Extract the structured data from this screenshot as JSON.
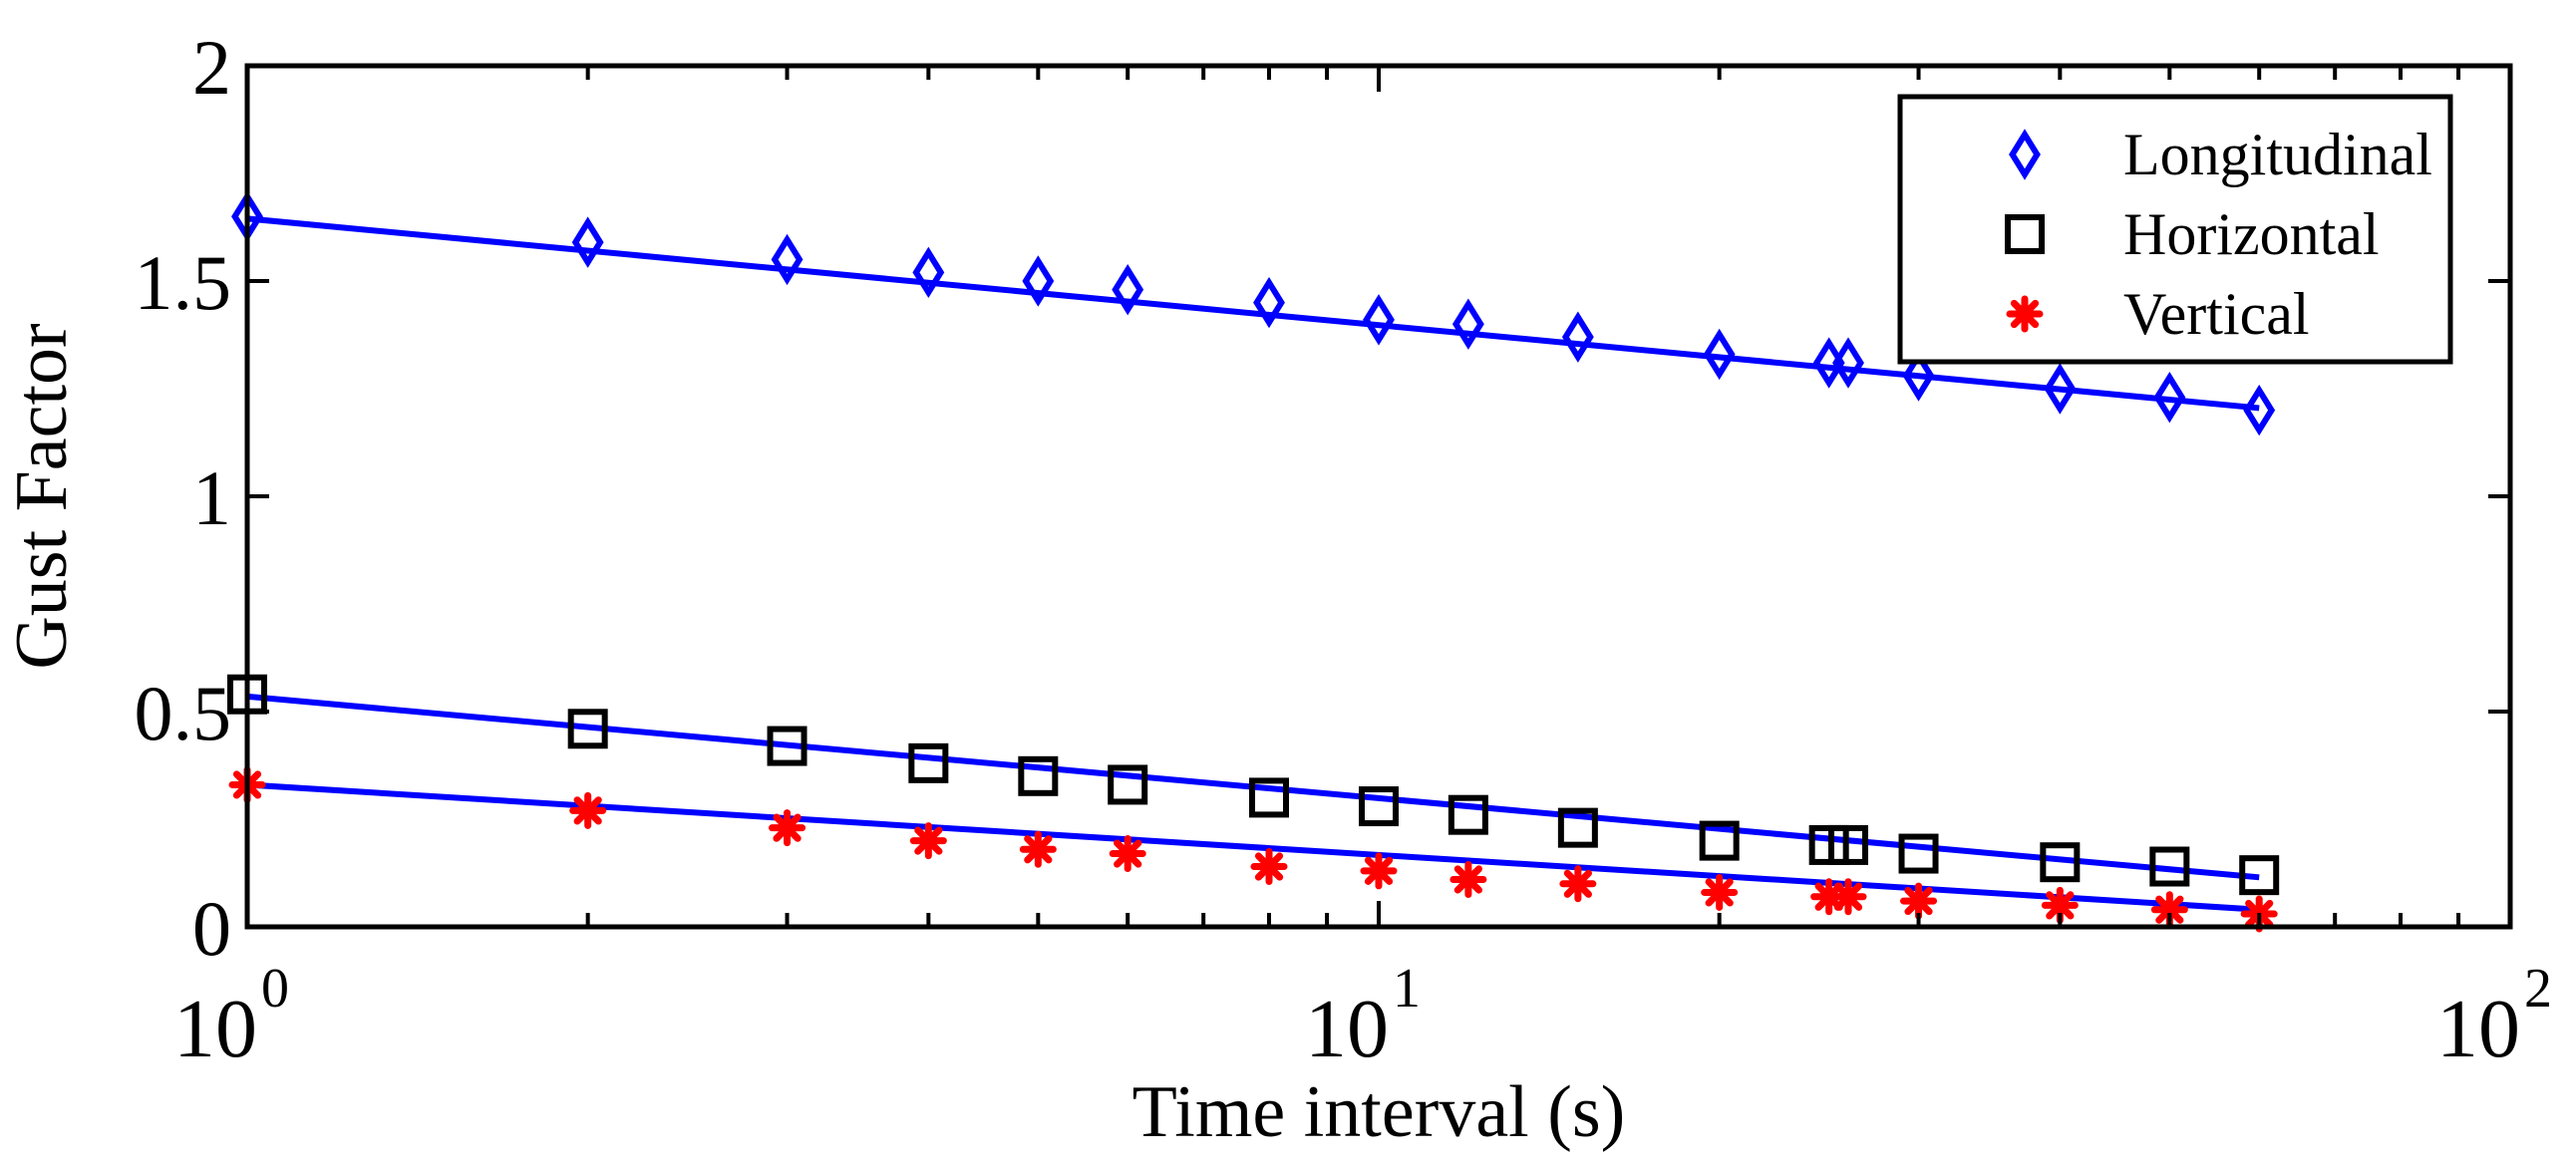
{
  "colors": {
    "axis": "#000000",
    "fit_line": "#0000ff",
    "longitudinal": "#0000ff",
    "horizontal": "#000000",
    "vertical": "#ff0000",
    "background": "#ffffff"
  },
  "chart_data": {
    "type": "scatter",
    "title": "",
    "xlabel": "Time interval (s)",
    "ylabel": "Gust Factor",
    "xscale": "log",
    "xlim": [
      1,
      100
    ],
    "ylim": [
      0,
      2
    ],
    "grid": false,
    "legend_position": "top-right",
    "xticks": [
      {
        "value": 1,
        "base": "10",
        "exp": "0"
      },
      {
        "value": 10,
        "base": "10",
        "exp": "1"
      },
      {
        "value": 100,
        "base": "10",
        "exp": "2"
      }
    ],
    "yticks": [
      {
        "value": 0,
        "label": "0"
      },
      {
        "value": 0.5,
        "label": "0.5"
      },
      {
        "value": 1,
        "label": "1"
      },
      {
        "value": 1.5,
        "label": "1.5"
      },
      {
        "value": 2,
        "label": "2"
      }
    ],
    "x": [
      1,
      2,
      3,
      4,
      5,
      6,
      8,
      10,
      12,
      15,
      20,
      25,
      26,
      30,
      40,
      50,
      60
    ],
    "series": [
      {
        "name": "Longitudinal",
        "marker": "diamond",
        "values": [
          1.65,
          1.59,
          1.55,
          1.52,
          1.5,
          1.48,
          1.45,
          1.41,
          1.4,
          1.37,
          1.33,
          1.31,
          1.31,
          1.28,
          1.25,
          1.23,
          1.2
        ],
        "fit": [
          1.645,
          1.205
        ]
      },
      {
        "name": "Horizontal",
        "marker": "square",
        "values": [
          0.54,
          0.46,
          0.42,
          0.38,
          0.35,
          0.33,
          0.3,
          0.28,
          0.26,
          0.23,
          0.2,
          0.19,
          0.19,
          0.17,
          0.15,
          0.14,
          0.12
        ],
        "fit": [
          0.535,
          0.115
        ]
      },
      {
        "name": "Vertical",
        "marker": "star",
        "values": [
          0.33,
          0.27,
          0.23,
          0.2,
          0.18,
          0.17,
          0.14,
          0.13,
          0.11,
          0.1,
          0.08,
          0.07,
          0.07,
          0.06,
          0.05,
          0.04,
          0.03
        ],
        "fit": [
          0.33,
          0.04
        ]
      }
    ]
  }
}
